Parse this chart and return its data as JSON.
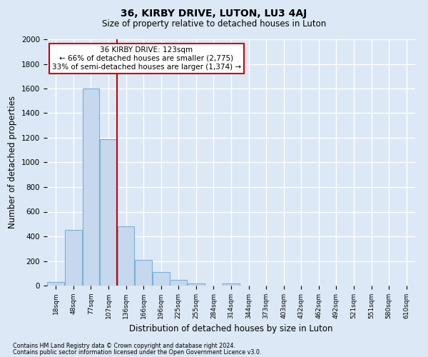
{
  "title": "36, KIRBY DRIVE, LUTON, LU3 4AJ",
  "subtitle": "Size of property relative to detached houses in Luton",
  "xlabel": "Distribution of detached houses by size in Luton",
  "ylabel": "Number of detached properties",
  "bar_labels": [
    "18sqm",
    "48sqm",
    "77sqm",
    "107sqm",
    "136sqm",
    "166sqm",
    "196sqm",
    "225sqm",
    "255sqm",
    "284sqm",
    "314sqm",
    "344sqm",
    "373sqm",
    "403sqm",
    "432sqm",
    "462sqm",
    "492sqm",
    "521sqm",
    "551sqm",
    "580sqm",
    "610sqm"
  ],
  "bar_values": [
    30,
    450,
    1600,
    1190,
    480,
    210,
    110,
    45,
    15,
    0,
    20,
    0,
    0,
    0,
    0,
    0,
    0,
    0,
    0,
    0,
    0
  ],
  "bar_color": "#c5d8ee",
  "bar_edge_color": "#7bafd4",
  "vline_x_pos": 4,
  "vline_color": "#cc0000",
  "annotation_title": "36 KIRBY DRIVE: 123sqm",
  "annotation_line1": "← 66% of detached houses are smaller (2,775)",
  "annotation_line2": "33% of semi-detached houses are larger (1,374) →",
  "annotation_box_facecolor": "#ffffff",
  "annotation_box_edgecolor": "#cc0000",
  "ylim": [
    0,
    2000
  ],
  "yticks": [
    0,
    200,
    400,
    600,
    800,
    1000,
    1200,
    1400,
    1600,
    1800,
    2000
  ],
  "footer1": "Contains HM Land Registry data © Crown copyright and database right 2024.",
  "footer2": "Contains public sector information licensed under the Open Government Licence v3.0.",
  "fig_bg_color": "#dce8f5",
  "plot_bg_color": "#dce8f5",
  "grid_color": "#ffffff"
}
